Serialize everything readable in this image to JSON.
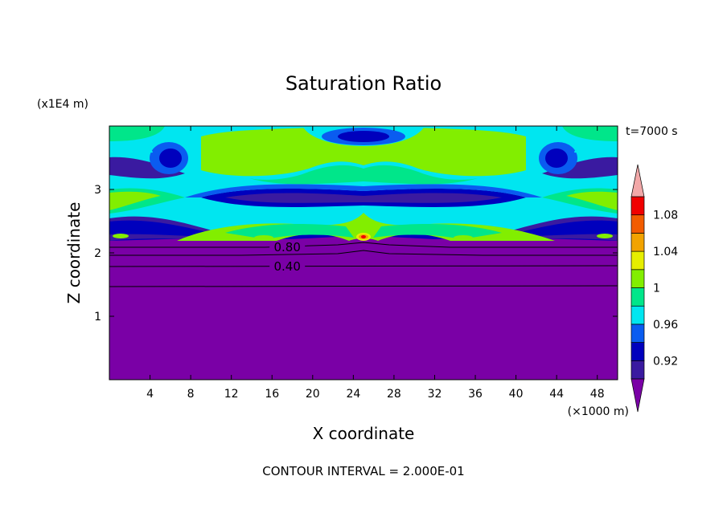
{
  "chart_data": {
    "type": "heatmap",
    "title": "Saturation Ratio",
    "xlabel": "X coordinate",
    "ylabel": "Z coordinate",
    "x_units": "(×1000 m)",
    "y_units": "(x1E4 m)",
    "time_label": "t=7000 s",
    "footer": "CONTOUR INTERVAL = 2.000E-01",
    "xlim": [
      0,
      50
    ],
    "ylim": [
      0,
      4
    ],
    "x_ticks": [
      4,
      8,
      12,
      16,
      20,
      24,
      28,
      32,
      36,
      40,
      44,
      48
    ],
    "y_ticks": [
      1,
      2,
      3
    ],
    "contour_labels": [
      {
        "text": "0.80",
        "x": 17.5,
        "z": 2.05
      },
      {
        "text": "0.40",
        "x": 17.5,
        "z": 1.75
      }
    ],
    "colorbar": {
      "levels": [
        0.9,
        0.92,
        0.94,
        0.96,
        0.98,
        1.0,
        1.02,
        1.04,
        1.06,
        1.08,
        1.1
      ],
      "labels": [
        "0.92",
        "0.96",
        "1",
        "1.04",
        "1.08"
      ],
      "label_values": [
        0.92,
        0.96,
        1.0,
        1.04,
        1.08
      ],
      "below_color": "#7a00a6",
      "above_color": "#f2a8a8",
      "colors": [
        "#3a1aa0",
        "#0000bd",
        "#0a5cf0",
        "#00e6f0",
        "#00e68a",
        "#82ee00",
        "#e6ee00",
        "#f2a300",
        "#f25c00",
        "#f00000"
      ]
    },
    "background_color": "#7a00a6"
  }
}
